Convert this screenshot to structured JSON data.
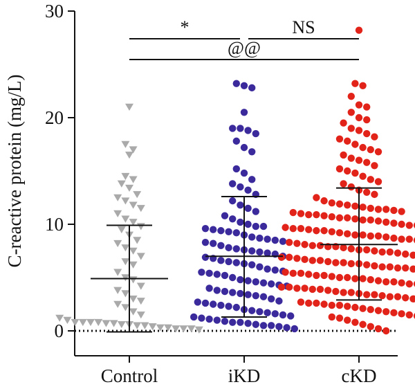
{
  "chart_data": {
    "type": "scatter",
    "title": "",
    "xlabel": "",
    "ylabel": "C-reactive protein (mg/L)",
    "ylim": [
      0,
      30
    ],
    "yticks": [
      0,
      10,
      20,
      30
    ],
    "categories": [
      "Control",
      "iKD",
      "cKD"
    ],
    "grid": false,
    "reference_line": {
      "y": 0,
      "style": "dotted"
    },
    "series": [
      {
        "category": "Control",
        "color": "#aaaaaa",
        "marker": "triangle-down",
        "mean": 4.9,
        "sd_upper": 9.9,
        "sd_lower": -0.1,
        "values": [
          21.0,
          17.5,
          17.0,
          16.5,
          14.5,
          14.2,
          13.8,
          13.4,
          12.8,
          12.5,
          12.2,
          11.8,
          11.5,
          11.0,
          10.5,
          10.2,
          9.8,
          9.5,
          9.0,
          8.5,
          8.2,
          7.8,
          7.5,
          7.0,
          6.5,
          6.2,
          5.5,
          5.0,
          4.8,
          4.2,
          3.8,
          3.5,
          3.0,
          2.8,
          2.5,
          2.2,
          1.8,
          1.5,
          1.2,
          1.0,
          0.8,
          0.8,
          0.8,
          0.8,
          0.7,
          0.7,
          0.6,
          0.6,
          0.5,
          0.5,
          0.4,
          0.3,
          0.3,
          0.2,
          0.2,
          0.2,
          0.1
        ]
      },
      {
        "category": "iKD",
        "color": "#3a2a9c",
        "marker": "circle",
        "mean": 7.0,
        "sd_upper": 12.6,
        "sd_lower": 1.3,
        "values": [
          23.2,
          23.0,
          22.8,
          20.5,
          19.0,
          19.0,
          18.8,
          18.5,
          17.8,
          17.2,
          16.8,
          15.2,
          14.8,
          14.2,
          13.8,
          13.5,
          13.2,
          12.8,
          12.2,
          11.8,
          11.5,
          11.2,
          10.8,
          10.5,
          10.2,
          10.0,
          9.8,
          9.6,
          9.5,
          9.4,
          9.2,
          9.0,
          8.8,
          8.6,
          8.5,
          8.4,
          8.2,
          8.0,
          7.8,
          7.6,
          7.5,
          7.4,
          7.2,
          7.0,
          6.8,
          6.6,
          6.5,
          6.4,
          6.2,
          6.0,
          5.8,
          5.6,
          5.5,
          5.4,
          5.2,
          5.0,
          4.8,
          4.6,
          4.5,
          4.4,
          4.2,
          4.0,
          3.8,
          3.6,
          3.5,
          3.4,
          3.2,
          3.0,
          2.8,
          2.6,
          2.5,
          2.4,
          2.2,
          2.0,
          1.9,
          1.8,
          1.6,
          1.5,
          1.4,
          1.2,
          1.1,
          1.0,
          0.9,
          0.8,
          0.7,
          0.6,
          0.5,
          0.4,
          0.3,
          0.2,
          9.8,
          9.3,
          8.7,
          8.3,
          7.7,
          7.3,
          6.9,
          6.3,
          5.7,
          5.3,
          4.7,
          4.3,
          3.7,
          3.3,
          2.7,
          2.3,
          1.7,
          1.3,
          0.8,
          0.5
        ]
      },
      {
        "category": "cKD",
        "color": "#e2231a",
        "marker": "circle",
        "mean": 8.1,
        "sd_upper": 13.4,
        "sd_lower": 2.9,
        "values": [
          28.2,
          23.2,
          23.0,
          22.0,
          21.2,
          21.0,
          20.5,
          20.0,
          19.8,
          19.5,
          19.0,
          18.8,
          18.5,
          18.2,
          18.0,
          17.8,
          17.5,
          17.2,
          17.0,
          16.8,
          16.5,
          16.2,
          16.0,
          15.8,
          15.5,
          15.2,
          15.0,
          14.8,
          14.5,
          14.2,
          14.0,
          13.8,
          13.5,
          13.2,
          13.0,
          12.8,
          12.5,
          12.2,
          12.0,
          11.8,
          11.6,
          11.5,
          11.4,
          11.2,
          11.0,
          10.8,
          10.6,
          10.5,
          10.4,
          10.2,
          10.0,
          9.8,
          9.6,
          9.5,
          9.4,
          9.2,
          9.0,
          8.8,
          8.6,
          8.5,
          8.4,
          8.2,
          8.0,
          7.8,
          7.6,
          7.5,
          7.4,
          7.2,
          7.0,
          6.8,
          6.6,
          6.5,
          6.4,
          6.2,
          6.0,
          5.8,
          5.6,
          5.5,
          5.4,
          5.2,
          5.0,
          4.8,
          4.6,
          4.5,
          4.4,
          4.2,
          4.0,
          3.8,
          3.6,
          3.5,
          3.4,
          3.2,
          3.0,
          2.8,
          2.6,
          2.5,
          2.4,
          2.2,
          2.0,
          1.8,
          1.6,
          1.5,
          1.4,
          1.2,
          1.0,
          0.8,
          0.6,
          0.4,
          0.2,
          0.0,
          11.9,
          11.3,
          10.9,
          10.3,
          9.9,
          9.3,
          8.9,
          8.3,
          7.9,
          7.3,
          6.9,
          6.3,
          5.9,
          5.3,
          4.9,
          4.3,
          3.9,
          3.3,
          2.9,
          2.3,
          1.9,
          1.3,
          11.7,
          10.7,
          9.7,
          8.7,
          7.7,
          6.7,
          5.7,
          4.7,
          3.7,
          2.7,
          1.7,
          11.1,
          10.1,
          9.1,
          8.1,
          7.1,
          6.1,
          5.1,
          4.1,
          3.1,
          2.1,
          11.4,
          10.4,
          9.4,
          8.4,
          7.4,
          6.4,
          5.4,
          4.4,
          3.4,
          2.4,
          10.9,
          9.9,
          8.9,
          7.9,
          6.9,
          5.9,
          4.9,
          3.9,
          2.9,
          10.6,
          9.6,
          8.6,
          7.6,
          6.6,
          5.6,
          4.6,
          3.6,
          2.6,
          8.0,
          7.0,
          6.0,
          5.0,
          4.0,
          9.0,
          6.3,
          5.2,
          4.1,
          3.2
        ]
      }
    ],
    "annotations": [
      {
        "label": "*",
        "from": "Control",
        "to": "iKD",
        "level": 1
      },
      {
        "label": "NS",
        "from": "iKD",
        "to": "cKD",
        "level": 1
      },
      {
        "label": "@@",
        "from": "Control",
        "to": "cKD",
        "level": 2
      }
    ]
  }
}
